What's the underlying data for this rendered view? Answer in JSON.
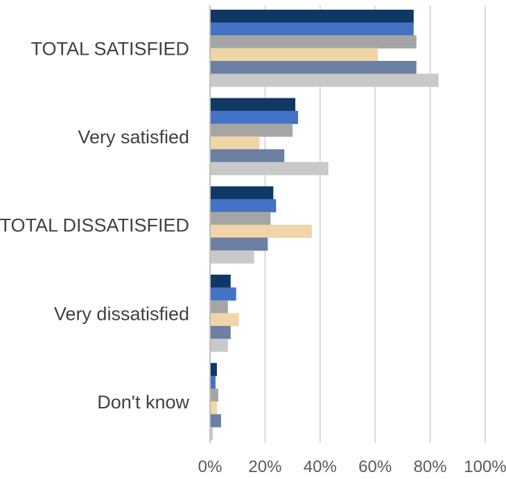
{
  "chart_data": {
    "type": "bar",
    "orientation": "horizontal",
    "title": "",
    "xlabel": "",
    "ylabel": "",
    "categories": [
      "TOTAL SATISFIED",
      "Very satisfied",
      "TOTAL DISSATISFIED",
      "Very dissatisfied",
      "Don't know"
    ],
    "xlim": [
      0,
      100
    ],
    "x_ticks": [
      "0%",
      "20%",
      "40%",
      "60%",
      "80%",
      "100%"
    ],
    "x_tick_values": [
      0,
      20,
      40,
      60,
      80,
      100
    ],
    "grid": true,
    "legend": "none",
    "series": [
      {
        "color": "#0f3864",
        "values": [
          74,
          31,
          23,
          7.5,
          2.5
        ]
      },
      {
        "color": "#4472c4",
        "values": [
          74,
          32,
          24,
          9.5,
          2
        ]
      },
      {
        "color": "#a5a5a5",
        "values": [
          75,
          30,
          22,
          6.5,
          3
        ]
      },
      {
        "color": "#f0d5a8",
        "values": [
          61,
          18,
          37,
          10.5,
          2.5
        ]
      },
      {
        "color": "#6b80a3",
        "values": [
          75,
          27,
          21,
          7.5,
          4
        ]
      },
      {
        "color": "#c9c9c9",
        "values": [
          83,
          43,
          16,
          6.5,
          1
        ]
      }
    ]
  }
}
